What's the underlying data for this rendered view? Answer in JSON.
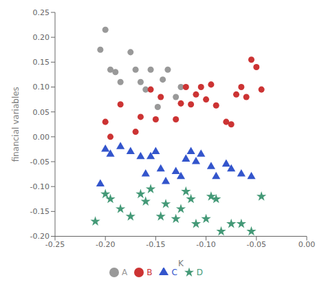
{
  "chart_data": {
    "type": "scatter",
    "title": "",
    "xlabel": "K",
    "ylabel": "financial variables",
    "xlim": [
      -0.25,
      0.0
    ],
    "ylim": [
      -0.2,
      0.25
    ],
    "xticks": [
      -0.25,
      {
        "value": -0.2,
        "label": "-0.20"
      },
      -0.15,
      {
        "value": -0.1,
        "label": "-0.10"
      },
      -0.05,
      {
        "value": 0.0,
        "label": "0.00"
      }
    ],
    "yticks": [
      {
        "value": -0.2,
        "label": "-0.20"
      },
      -0.15,
      {
        "value": -0.1,
        "label": "-0.10"
      },
      -0.05,
      {
        "value": 0.0,
        "label": "0.00"
      },
      0.05,
      {
        "value": 0.1,
        "label": "0.10"
      },
      0.15,
      {
        "value": 0.2,
        "label": "0.20"
      },
      0.25
    ],
    "grid": false,
    "legend": "bottom",
    "series": [
      {
        "name": "A",
        "color": "#999999",
        "marker": "circle",
        "x": [
          -0.205,
          -0.2,
          -0.195,
          -0.19,
          -0.185,
          -0.175,
          -0.17,
          -0.165,
          -0.16,
          -0.155,
          -0.148,
          -0.143,
          -0.138,
          -0.13,
          -0.125
        ],
        "y": [
          0.175,
          0.215,
          0.135,
          0.13,
          0.11,
          0.17,
          0.135,
          0.11,
          0.095,
          0.135,
          0.06,
          0.115,
          0.135,
          0.08,
          0.1
        ]
      },
      {
        "name": "B",
        "color": "#cc3333",
        "marker": "circle",
        "x": [
          -0.2,
          -0.195,
          -0.185,
          -0.17,
          -0.165,
          -0.155,
          -0.15,
          -0.145,
          -0.13,
          -0.125,
          -0.12,
          -0.115,
          -0.11,
          -0.105,
          -0.1,
          -0.095,
          -0.09,
          -0.08,
          -0.075,
          -0.07,
          -0.065,
          -0.06,
          -0.055,
          -0.05,
          -0.045
        ],
        "y": [
          0.03,
          0.0,
          0.065,
          0.01,
          0.04,
          0.095,
          0.035,
          0.08,
          0.035,
          0.067,
          0.1,
          0.065,
          0.085,
          0.1,
          0.075,
          0.105,
          0.063,
          0.03,
          0.025,
          0.085,
          0.1,
          0.08,
          0.155,
          0.14,
          0.095
        ]
      },
      {
        "name": "C",
        "color": "#3355cc",
        "marker": "triangle",
        "x": [
          -0.205,
          -0.2,
          -0.195,
          -0.185,
          -0.175,
          -0.165,
          -0.16,
          -0.155,
          -0.15,
          -0.145,
          -0.14,
          -0.13,
          -0.125,
          -0.12,
          -0.115,
          -0.11,
          -0.105,
          -0.095,
          -0.09,
          -0.08,
          -0.075,
          -0.065,
          -0.055
        ],
        "y": [
          -0.095,
          -0.025,
          -0.035,
          -0.02,
          -0.03,
          -0.04,
          -0.075,
          -0.04,
          -0.03,
          -0.065,
          -0.09,
          -0.07,
          -0.08,
          -0.045,
          -0.03,
          -0.05,
          -0.035,
          -0.06,
          -0.08,
          -0.055,
          -0.065,
          -0.075,
          -0.08
        ]
      },
      {
        "name": "D",
        "color": "#449977",
        "marker": "star",
        "x": [
          -0.21,
          -0.2,
          -0.195,
          -0.185,
          -0.175,
          -0.165,
          -0.16,
          -0.155,
          -0.145,
          -0.14,
          -0.13,
          -0.125,
          -0.12,
          -0.115,
          -0.11,
          -0.1,
          -0.095,
          -0.09,
          -0.085,
          -0.075,
          -0.065,
          -0.055,
          -0.045
        ],
        "y": [
          -0.17,
          -0.115,
          -0.125,
          -0.145,
          -0.16,
          -0.115,
          -0.13,
          -0.105,
          -0.16,
          -0.135,
          -0.165,
          -0.145,
          -0.11,
          -0.125,
          -0.175,
          -0.165,
          -0.12,
          -0.125,
          -0.19,
          -0.175,
          -0.175,
          -0.19,
          -0.12
        ]
      }
    ]
  }
}
